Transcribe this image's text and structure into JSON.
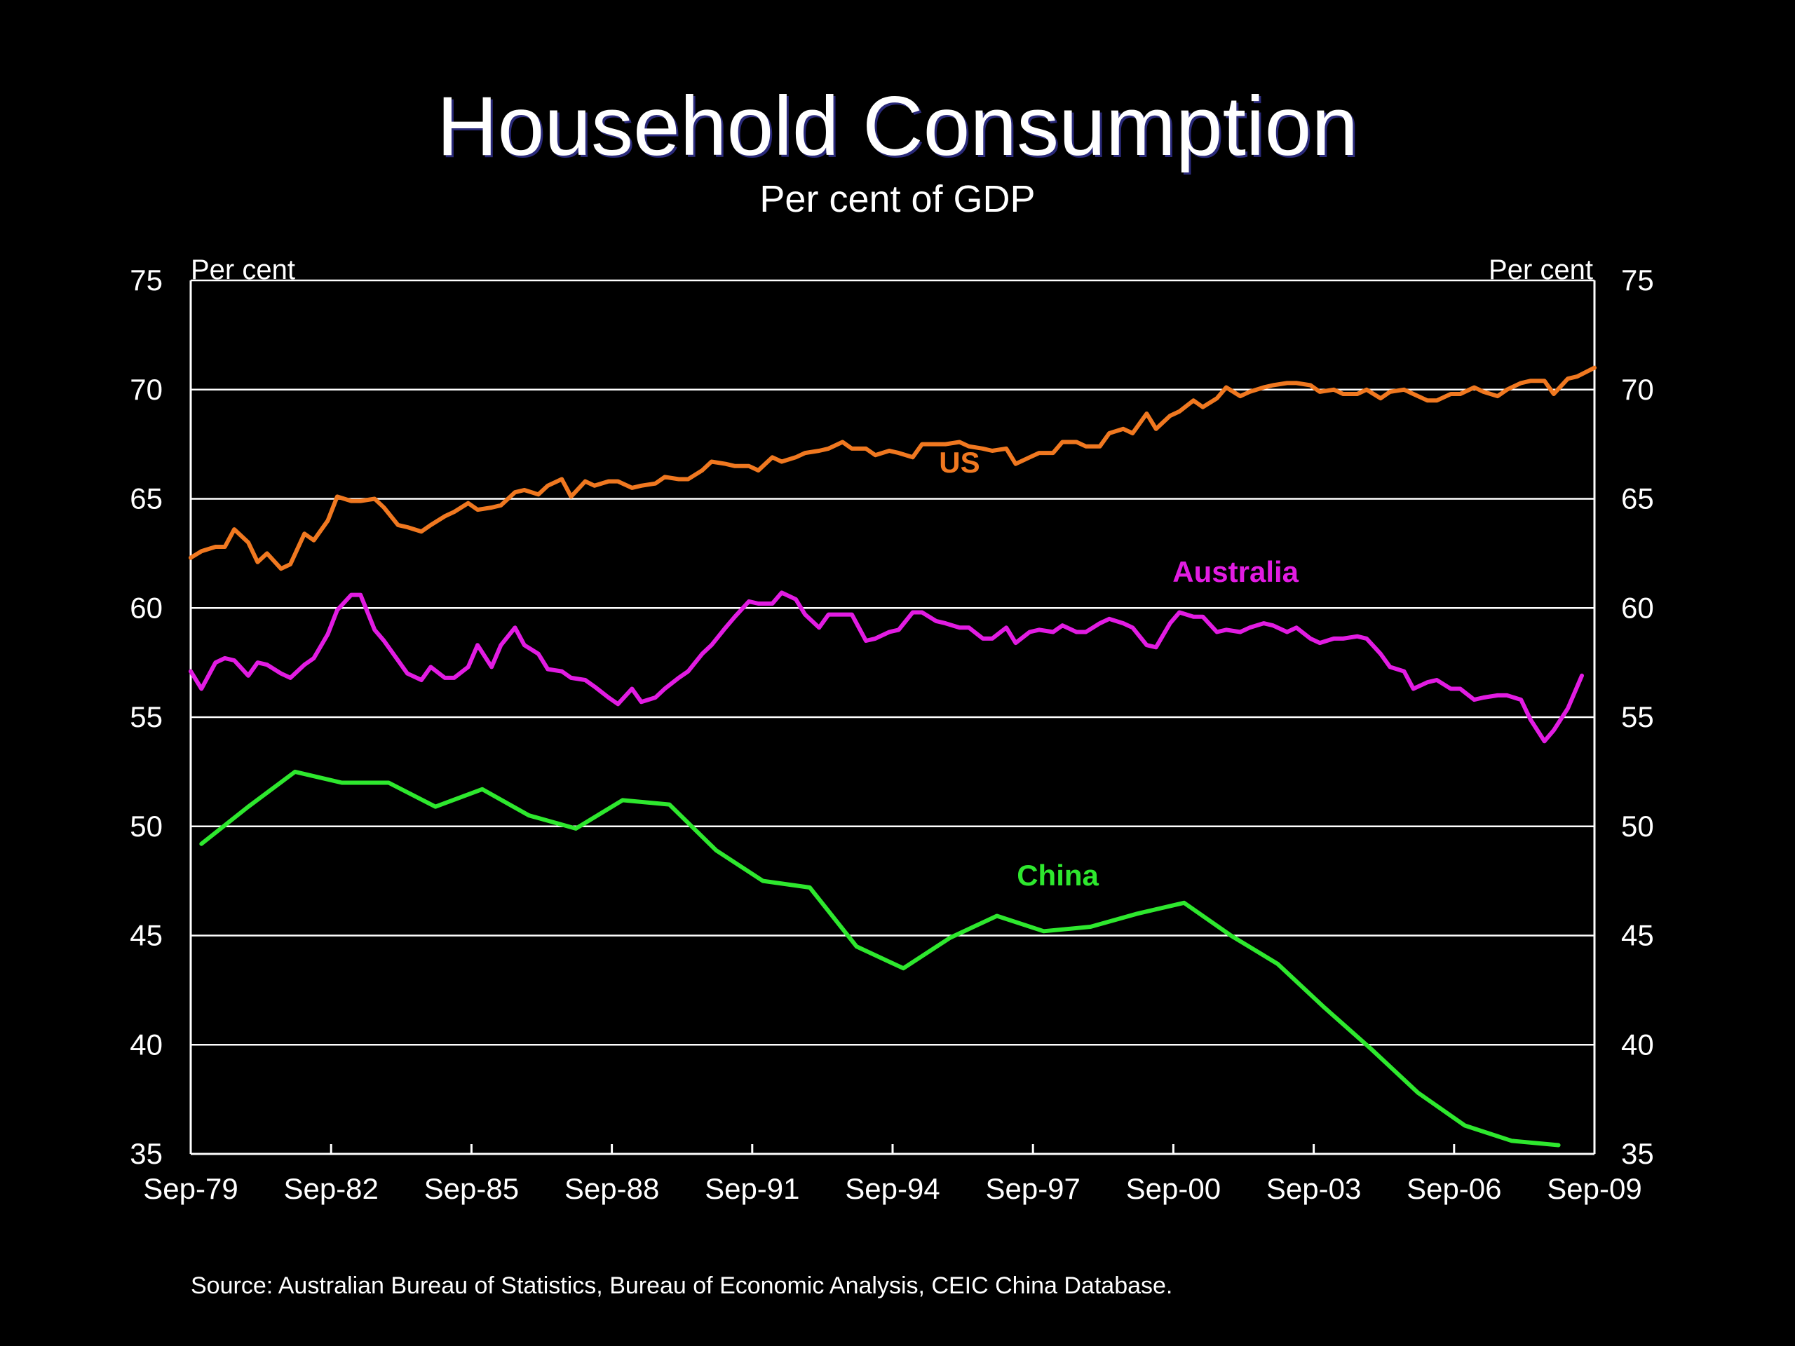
{
  "chart_data": {
    "type": "line",
    "title": "Household Consumption",
    "subtitle": "Per cent of GDP",
    "ylabel_left": "Per cent",
    "ylabel_right": "Per cent",
    "ylim": [
      35,
      75
    ],
    "yticks": [
      35,
      40,
      45,
      50,
      55,
      60,
      65,
      70,
      75
    ],
    "xlim": [
      1979.67,
      2009.67
    ],
    "xticks": [
      {
        "x": 1979.67,
        "label": "Sep-79"
      },
      {
        "x": 1982.67,
        "label": "Sep-82"
      },
      {
        "x": 1985.67,
        "label": "Sep-85"
      },
      {
        "x": 1988.67,
        "label": "Sep-88"
      },
      {
        "x": 1991.67,
        "label": "Sep-91"
      },
      {
        "x": 1994.67,
        "label": "Sep-94"
      },
      {
        "x": 1997.67,
        "label": "Sep-97"
      },
      {
        "x": 2000.67,
        "label": "Sep-00"
      },
      {
        "x": 2003.67,
        "label": "Sep-03"
      },
      {
        "x": 2006.67,
        "label": "Sep-06"
      },
      {
        "x": 2009.67,
        "label": "Sep-09"
      }
    ],
    "grid": true,
    "series": [
      {
        "name": "US",
        "color": "#F07820",
        "points": [
          [
            1979.67,
            62.3
          ],
          [
            1979.9,
            62.6
          ],
          [
            1980.2,
            62.8
          ],
          [
            1980.4,
            62.8
          ],
          [
            1980.6,
            63.6
          ],
          [
            1980.9,
            63.0
          ],
          [
            1981.1,
            62.1
          ],
          [
            1981.3,
            62.5
          ],
          [
            1981.6,
            61.8
          ],
          [
            1981.8,
            62.0
          ],
          [
            1982.1,
            63.4
          ],
          [
            1982.3,
            63.1
          ],
          [
            1982.6,
            64.0
          ],
          [
            1982.8,
            65.1
          ],
          [
            1983.1,
            64.9
          ],
          [
            1983.3,
            64.9
          ],
          [
            1983.6,
            65.0
          ],
          [
            1983.8,
            64.6
          ],
          [
            1984.1,
            63.8
          ],
          [
            1984.3,
            63.7
          ],
          [
            1984.6,
            63.5
          ],
          [
            1984.8,
            63.8
          ],
          [
            1985.1,
            64.2
          ],
          [
            1985.3,
            64.4
          ],
          [
            1985.6,
            64.8
          ],
          [
            1985.8,
            64.5
          ],
          [
            1986.1,
            64.6
          ],
          [
            1986.3,
            64.7
          ],
          [
            1986.6,
            65.3
          ],
          [
            1986.8,
            65.4
          ],
          [
            1987.1,
            65.2
          ],
          [
            1987.3,
            65.6
          ],
          [
            1987.6,
            65.9
          ],
          [
            1987.8,
            65.1
          ],
          [
            1988.1,
            65.8
          ],
          [
            1988.3,
            65.6
          ],
          [
            1988.6,
            65.8
          ],
          [
            1988.8,
            65.8
          ],
          [
            1989.1,
            65.5
          ],
          [
            1989.3,
            65.6
          ],
          [
            1989.6,
            65.7
          ],
          [
            1989.8,
            66.0
          ],
          [
            1990.1,
            65.9
          ],
          [
            1990.3,
            65.9
          ],
          [
            1990.6,
            66.3
          ],
          [
            1990.8,
            66.7
          ],
          [
            1991.1,
            66.6
          ],
          [
            1991.3,
            66.5
          ],
          [
            1991.6,
            66.5
          ],
          [
            1991.8,
            66.3
          ],
          [
            1992.1,
            66.9
          ],
          [
            1992.3,
            66.7
          ],
          [
            1992.6,
            66.9
          ],
          [
            1992.8,
            67.1
          ],
          [
            1993.1,
            67.2
          ],
          [
            1993.3,
            67.3
          ],
          [
            1993.6,
            67.6
          ],
          [
            1993.8,
            67.3
          ],
          [
            1994.1,
            67.3
          ],
          [
            1994.3,
            67.0
          ],
          [
            1994.6,
            67.2
          ],
          [
            1994.8,
            67.1
          ],
          [
            1995.1,
            66.9
          ],
          [
            1995.3,
            67.5
          ],
          [
            1995.6,
            67.5
          ],
          [
            1995.8,
            67.5
          ],
          [
            1996.1,
            67.6
          ],
          [
            1996.3,
            67.4
          ],
          [
            1996.6,
            67.3
          ],
          [
            1996.8,
            67.2
          ],
          [
            1997.1,
            67.3
          ],
          [
            1997.3,
            66.6
          ],
          [
            1997.6,
            66.9
          ],
          [
            1997.8,
            67.1
          ],
          [
            1998.1,
            67.1
          ],
          [
            1998.3,
            67.6
          ],
          [
            1998.6,
            67.6
          ],
          [
            1998.8,
            67.4
          ],
          [
            1999.1,
            67.4
          ],
          [
            1999.3,
            68.0
          ],
          [
            1999.6,
            68.2
          ],
          [
            1999.8,
            68.0
          ],
          [
            2000.1,
            68.9
          ],
          [
            2000.3,
            68.2
          ],
          [
            2000.6,
            68.8
          ],
          [
            2000.8,
            69.0
          ],
          [
            2001.1,
            69.5
          ],
          [
            2001.3,
            69.2
          ],
          [
            2001.6,
            69.6
          ],
          [
            2001.8,
            70.1
          ],
          [
            2002.1,
            69.7
          ],
          [
            2002.3,
            69.9
          ],
          [
            2002.6,
            70.1
          ],
          [
            2002.8,
            70.2
          ],
          [
            2003.1,
            70.3
          ],
          [
            2003.3,
            70.3
          ],
          [
            2003.6,
            70.2
          ],
          [
            2003.8,
            69.9
          ],
          [
            2004.1,
            70.0
          ],
          [
            2004.3,
            69.8
          ],
          [
            2004.6,
            69.8
          ],
          [
            2004.8,
            70.0
          ],
          [
            2005.1,
            69.6
          ],
          [
            2005.3,
            69.9
          ],
          [
            2005.6,
            70.0
          ],
          [
            2005.8,
            69.8
          ],
          [
            2006.1,
            69.5
          ],
          [
            2006.3,
            69.5
          ],
          [
            2006.6,
            69.8
          ],
          [
            2006.8,
            69.8
          ],
          [
            2007.1,
            70.1
          ],
          [
            2007.3,
            69.9
          ],
          [
            2007.6,
            69.7
          ],
          [
            2007.8,
            70.0
          ],
          [
            2008.1,
            70.3
          ],
          [
            2008.3,
            70.4
          ],
          [
            2008.6,
            70.4
          ],
          [
            2008.8,
            69.8
          ],
          [
            2009.1,
            70.5
          ],
          [
            2009.3,
            70.6
          ],
          [
            2009.67,
            71.0
          ]
        ]
      },
      {
        "name": "Australia",
        "color": "#E21CE2",
        "points": [
          [
            1979.67,
            57.1
          ],
          [
            1979.9,
            56.3
          ],
          [
            1980.2,
            57.5
          ],
          [
            1980.4,
            57.7
          ],
          [
            1980.6,
            57.6
          ],
          [
            1980.9,
            56.9
          ],
          [
            1981.1,
            57.5
          ],
          [
            1981.3,
            57.4
          ],
          [
            1981.6,
            57.0
          ],
          [
            1981.8,
            56.8
          ],
          [
            1982.1,
            57.4
          ],
          [
            1982.3,
            57.7
          ],
          [
            1982.6,
            58.8
          ],
          [
            1982.8,
            59.9
          ],
          [
            1983.1,
            60.6
          ],
          [
            1983.3,
            60.6
          ],
          [
            1983.6,
            59.0
          ],
          [
            1983.8,
            58.5
          ],
          [
            1984.1,
            57.6
          ],
          [
            1984.3,
            57.0
          ],
          [
            1984.6,
            56.7
          ],
          [
            1984.8,
            57.3
          ],
          [
            1985.1,
            56.8
          ],
          [
            1985.3,
            56.8
          ],
          [
            1985.6,
            57.3
          ],
          [
            1985.8,
            58.3
          ],
          [
            1986.1,
            57.3
          ],
          [
            1986.3,
            58.3
          ],
          [
            1986.6,
            59.1
          ],
          [
            1986.8,
            58.3
          ],
          [
            1987.1,
            57.9
          ],
          [
            1987.3,
            57.2
          ],
          [
            1987.6,
            57.1
          ],
          [
            1987.8,
            56.8
          ],
          [
            1988.1,
            56.7
          ],
          [
            1988.3,
            56.4
          ],
          [
            1988.6,
            55.9
          ],
          [
            1988.8,
            55.6
          ],
          [
            1989.1,
            56.3
          ],
          [
            1989.3,
            55.7
          ],
          [
            1989.6,
            55.9
          ],
          [
            1989.8,
            56.3
          ],
          [
            1990.1,
            56.8
          ],
          [
            1990.3,
            57.1
          ],
          [
            1990.6,
            57.9
          ],
          [
            1990.8,
            58.3
          ],
          [
            1991.1,
            59.1
          ],
          [
            1991.3,
            59.6
          ],
          [
            1991.6,
            60.3
          ],
          [
            1991.8,
            60.2
          ],
          [
            1992.1,
            60.2
          ],
          [
            1992.3,
            60.7
          ],
          [
            1992.6,
            60.4
          ],
          [
            1992.8,
            59.7
          ],
          [
            1993.1,
            59.1
          ],
          [
            1993.3,
            59.7
          ],
          [
            1993.6,
            59.7
          ],
          [
            1993.8,
            59.7
          ],
          [
            1994.1,
            58.5
          ],
          [
            1994.3,
            58.6
          ],
          [
            1994.6,
            58.9
          ],
          [
            1994.8,
            59.0
          ],
          [
            1995.1,
            59.8
          ],
          [
            1995.3,
            59.8
          ],
          [
            1995.6,
            59.4
          ],
          [
            1995.8,
            59.3
          ],
          [
            1996.1,
            59.1
          ],
          [
            1996.3,
            59.1
          ],
          [
            1996.6,
            58.6
          ],
          [
            1996.8,
            58.6
          ],
          [
            1997.1,
            59.1
          ],
          [
            1997.3,
            58.4
          ],
          [
            1997.6,
            58.9
          ],
          [
            1997.8,
            59.0
          ],
          [
            1998.1,
            58.9
          ],
          [
            1998.3,
            59.2
          ],
          [
            1998.6,
            58.9
          ],
          [
            1998.8,
            58.9
          ],
          [
            1999.1,
            59.3
          ],
          [
            1999.3,
            59.5
          ],
          [
            1999.6,
            59.3
          ],
          [
            1999.8,
            59.1
          ],
          [
            2000.1,
            58.3
          ],
          [
            2000.3,
            58.2
          ],
          [
            2000.6,
            59.3
          ],
          [
            2000.8,
            59.8
          ],
          [
            2001.1,
            59.6
          ],
          [
            2001.3,
            59.6
          ],
          [
            2001.6,
            58.9
          ],
          [
            2001.8,
            59.0
          ],
          [
            2002.1,
            58.9
          ],
          [
            2002.3,
            59.1
          ],
          [
            2002.6,
            59.3
          ],
          [
            2002.8,
            59.2
          ],
          [
            2003.1,
            58.9
          ],
          [
            2003.3,
            59.1
          ],
          [
            2003.6,
            58.6
          ],
          [
            2003.8,
            58.4
          ],
          [
            2004.1,
            58.6
          ],
          [
            2004.3,
            58.6
          ],
          [
            2004.6,
            58.7
          ],
          [
            2004.8,
            58.6
          ],
          [
            2005.1,
            57.9
          ],
          [
            2005.3,
            57.3
          ],
          [
            2005.6,
            57.1
          ],
          [
            2005.8,
            56.3
          ],
          [
            2006.1,
            56.6
          ],
          [
            2006.3,
            56.7
          ],
          [
            2006.6,
            56.3
          ],
          [
            2006.8,
            56.3
          ],
          [
            2007.1,
            55.8
          ],
          [
            2007.3,
            55.9
          ],
          [
            2007.6,
            56.0
          ],
          [
            2007.8,
            56.0
          ],
          [
            2008.1,
            55.8
          ],
          [
            2008.3,
            54.9
          ],
          [
            2008.6,
            53.9
          ],
          [
            2008.8,
            54.4
          ],
          [
            2009.1,
            55.4
          ],
          [
            2009.4,
            56.9
          ]
        ]
      },
      {
        "name": "China",
        "color": "#2EE82E",
        "points": [
          [
            1979.9,
            49.2
          ],
          [
            1980.9,
            50.9
          ],
          [
            1981.9,
            52.5
          ],
          [
            1982.9,
            52.0
          ],
          [
            1983.9,
            52.0
          ],
          [
            1984.9,
            50.9
          ],
          [
            1985.9,
            51.7
          ],
          [
            1986.9,
            50.5
          ],
          [
            1987.9,
            49.9
          ],
          [
            1988.9,
            51.2
          ],
          [
            1989.9,
            51.0
          ],
          [
            1990.9,
            48.9
          ],
          [
            1991.9,
            47.5
          ],
          [
            1992.9,
            47.2
          ],
          [
            1993.9,
            44.5
          ],
          [
            1994.9,
            43.5
          ],
          [
            1995.9,
            44.9
          ],
          [
            1996.9,
            45.9
          ],
          [
            1997.9,
            45.2
          ],
          [
            1998.9,
            45.4
          ],
          [
            1999.9,
            46.0
          ],
          [
            2000.9,
            46.5
          ],
          [
            2001.9,
            45.0
          ],
          [
            2002.9,
            43.7
          ],
          [
            2003.9,
            41.7
          ],
          [
            2004.9,
            39.8
          ],
          [
            2005.9,
            37.8
          ],
          [
            2006.9,
            36.3
          ],
          [
            2007.9,
            35.6
          ],
          [
            2008.9,
            35.4
          ]
        ]
      }
    ],
    "annotations": [
      {
        "text": "US",
        "x": 1996.1,
        "y": 66.2,
        "color": "#F07820"
      },
      {
        "text": "Australia",
        "x": 2002.0,
        "y": 61.2,
        "color": "#E21CE2"
      },
      {
        "text": "China",
        "x": 1998.2,
        "y": 47.3,
        "color": "#2EE82E"
      }
    ],
    "source": "Source: Australian Bureau of Statistics, Bureau of Economic Analysis, CEIC China Database."
  }
}
